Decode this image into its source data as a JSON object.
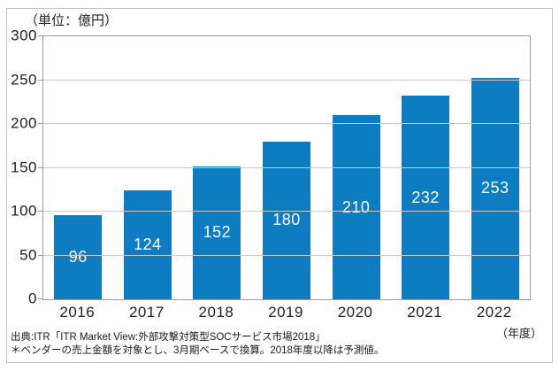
{
  "unit_label": "（単位：億円）",
  "axis_year_label": "（年度）",
  "source": {
    "line1": "出典:ITR「ITR Market View:外部攻撃対策型SOCサービス市場2018」",
    "line2": "＊ベンダーの売上金額を対象とし、3月期ベースで換算。2018年度以降は予測値。"
  },
  "colors": {
    "bar": "#0e7cc1",
    "bar_label": "#ffffff",
    "gridline": "#c9c9c9",
    "plot_border": "#9e9e9e",
    "frame_border": "#c3c3c3",
    "text": "#222222"
  },
  "chart_data": {
    "type": "bar",
    "categories": [
      "2016",
      "2017",
      "2018",
      "2019",
      "2020",
      "2021",
      "2022"
    ],
    "values": [
      96,
      124,
      152,
      180,
      210,
      232,
      253
    ],
    "title": "",
    "xlabel": "（年度）",
    "ylabel": "（単位：億円）",
    "ylim": [
      0,
      300
    ],
    "yticks": [
      0,
      50,
      100,
      150,
      200,
      250,
      300
    ],
    "grid": true,
    "legend": false,
    "bar_labels_shown": true
  }
}
